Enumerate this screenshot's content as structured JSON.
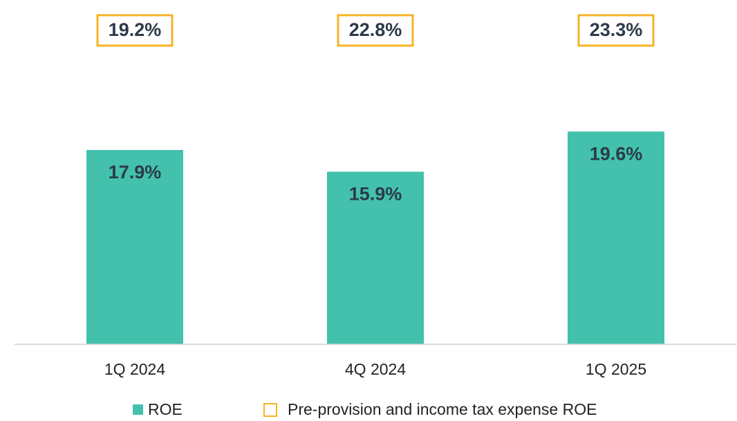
{
  "chart_data": {
    "type": "bar",
    "categories": [
      "1Q 2024",
      "4Q 2024",
      "1Q 2025"
    ],
    "series": [
      {
        "name": "ROE",
        "color": "#43c1ad",
        "values": [
          17.9,
          15.9,
          19.6
        ],
        "value_labels": [
          "17.9%",
          "15.9%",
          "19.6%"
        ]
      },
      {
        "name": "Pre-provision and income tax expense ROE",
        "color": "#f5b324",
        "values": [
          19.2,
          22.8,
          23.3
        ],
        "value_labels": [
          "19.2%",
          "22.8%",
          "23.3%"
        ]
      }
    ],
    "ylim": [
      0,
      30
    ]
  }
}
